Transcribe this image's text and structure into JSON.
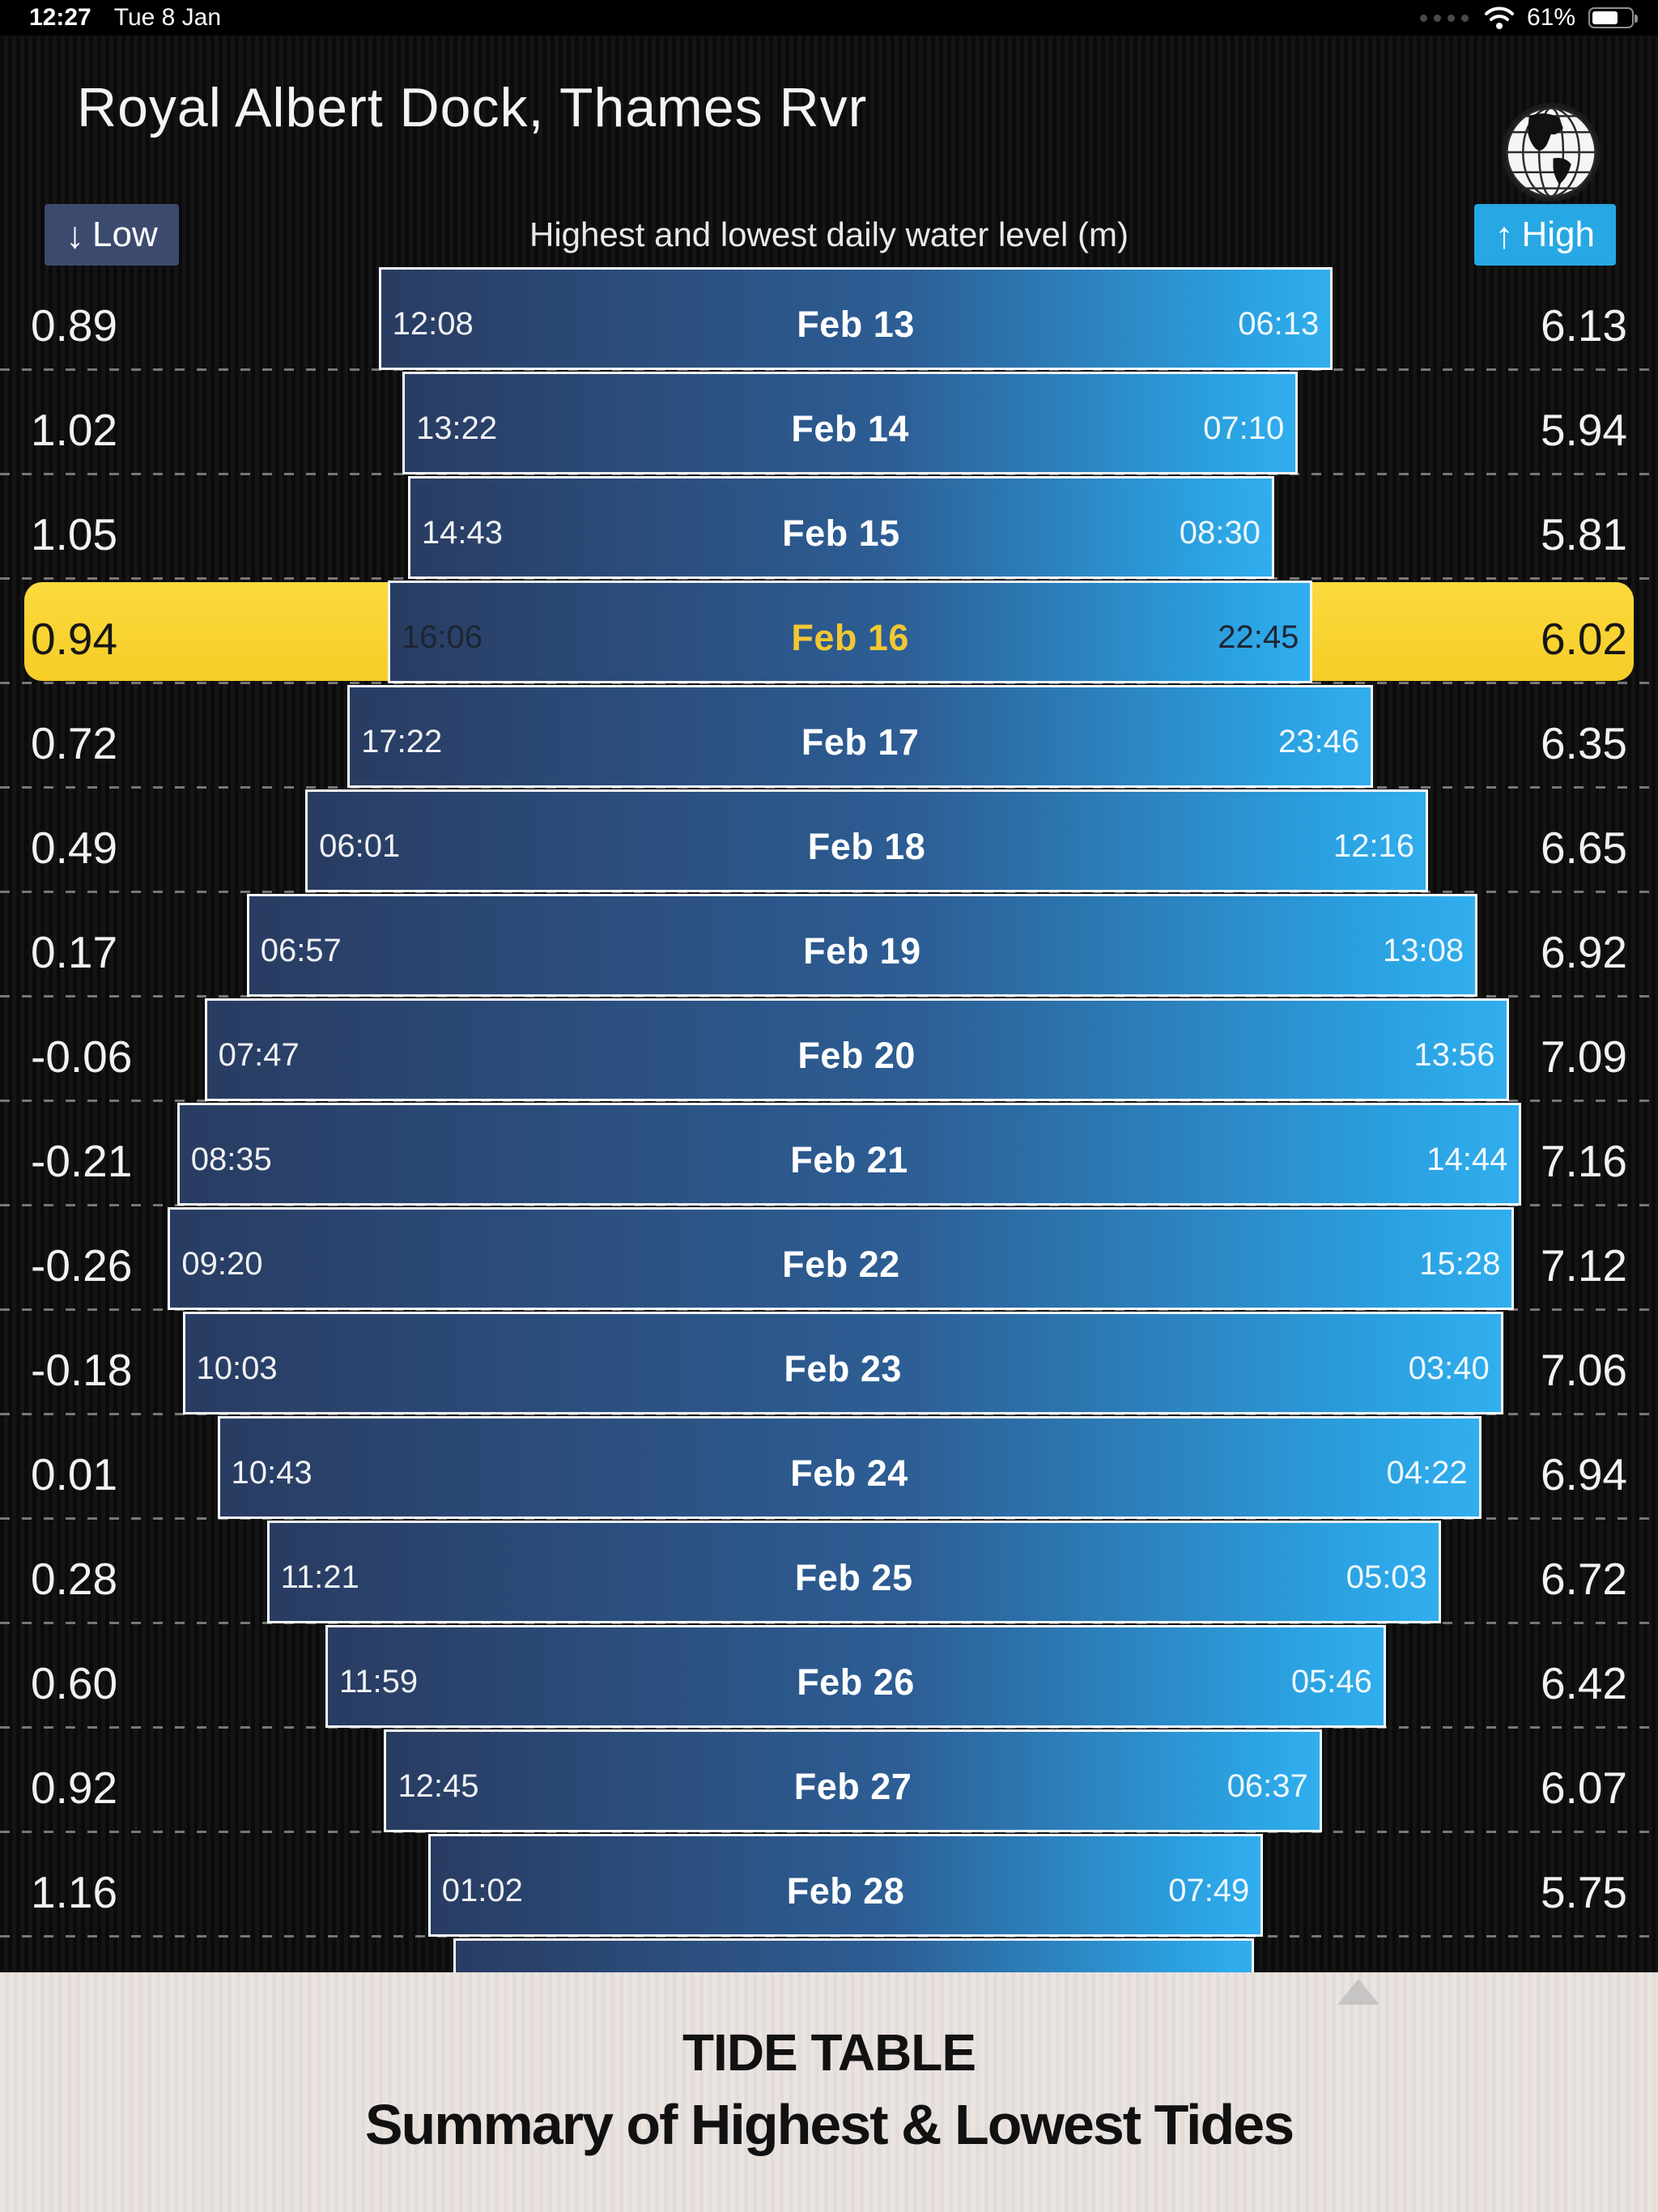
{
  "status_bar": {
    "time": "12:27",
    "date": "Tue 8 Jan",
    "battery_percent": "61%"
  },
  "header": {
    "title": "Royal Albert Dock, Thames Rvr"
  },
  "legend": {
    "low_arrow": "↓",
    "low_label": "Low",
    "center_label": "Highest and lowest daily water level (m)",
    "high_arrow": "↑",
    "high_label": "High"
  },
  "colors": {
    "bar_dark": "#293c62",
    "bar_bright": "#2ba2e2",
    "highlight_yellow": "#f8d22c",
    "low_badge": "#3c4a6e",
    "high_badge": "#27a7e3",
    "footer_bg": "#e5dedb"
  },
  "footer": {
    "line1": "TIDE TABLE",
    "line2": "Summary of Highest & Lowest Tides"
  },
  "chart_data": {
    "type": "bar",
    "orientation": "horizontal-range",
    "title": "Highest and lowest daily water level (m)",
    "unit": "m",
    "note": "Each row is a day; bar left edge maps to low water level, right edge to high water level; left time = low tide time, right time = high tide time.",
    "value_range_shown": [
      -0.26,
      7.16
    ],
    "rows": [
      {
        "date": "Feb 13",
        "low_time": "12:08",
        "high_time": "06:13",
        "low": 0.89,
        "high": 6.13,
        "highlighted": false
      },
      {
        "date": "Feb 14",
        "low_time": "13:22",
        "high_time": "07:10",
        "low": 1.02,
        "high": 5.94,
        "highlighted": false
      },
      {
        "date": "Feb 15",
        "low_time": "14:43",
        "high_time": "08:30",
        "low": 1.05,
        "high": 5.81,
        "highlighted": false
      },
      {
        "date": "Feb 16",
        "low_time": "16:06",
        "high_time": "22:45",
        "low": 0.94,
        "high": 6.02,
        "highlighted": true
      },
      {
        "date": "Feb 17",
        "low_time": "17:22",
        "high_time": "23:46",
        "low": 0.72,
        "high": 6.35,
        "highlighted": false
      },
      {
        "date": "Feb 18",
        "low_time": "06:01",
        "high_time": "12:16",
        "low": 0.49,
        "high": 6.65,
        "highlighted": false
      },
      {
        "date": "Feb 19",
        "low_time": "06:57",
        "high_time": "13:08",
        "low": 0.17,
        "high": 6.92,
        "highlighted": false
      },
      {
        "date": "Feb 20",
        "low_time": "07:47",
        "high_time": "13:56",
        "low": -0.06,
        "high": 7.09,
        "highlighted": false
      },
      {
        "date": "Feb 21",
        "low_time": "08:35",
        "high_time": "14:44",
        "low": -0.21,
        "high": 7.16,
        "highlighted": false
      },
      {
        "date": "Feb 22",
        "low_time": "09:20",
        "high_time": "15:28",
        "low": -0.26,
        "high": 7.12,
        "highlighted": false
      },
      {
        "date": "Feb 23",
        "low_time": "10:03",
        "high_time": "03:40",
        "low": -0.18,
        "high": 7.06,
        "highlighted": false
      },
      {
        "date": "Feb 24",
        "low_time": "10:43",
        "high_time": "04:22",
        "low": 0.01,
        "high": 6.94,
        "highlighted": false
      },
      {
        "date": "Feb 25",
        "low_time": "11:21",
        "high_time": "05:03",
        "low": 0.28,
        "high": 6.72,
        "highlighted": false
      },
      {
        "date": "Feb 26",
        "low_time": "11:59",
        "high_time": "05:46",
        "low": 0.6,
        "high": 6.42,
        "highlighted": false
      },
      {
        "date": "Feb 27",
        "low_time": "12:45",
        "high_time": "06:37",
        "low": 0.92,
        "high": 6.07,
        "highlighted": false
      },
      {
        "date": "Feb 28",
        "low_time": "01:02",
        "high_time": "07:49",
        "low": 1.16,
        "high": 5.75,
        "highlighted": false
      }
    ],
    "partial_next_row": {
      "low_est": 1.3,
      "high_est": 5.7
    }
  }
}
